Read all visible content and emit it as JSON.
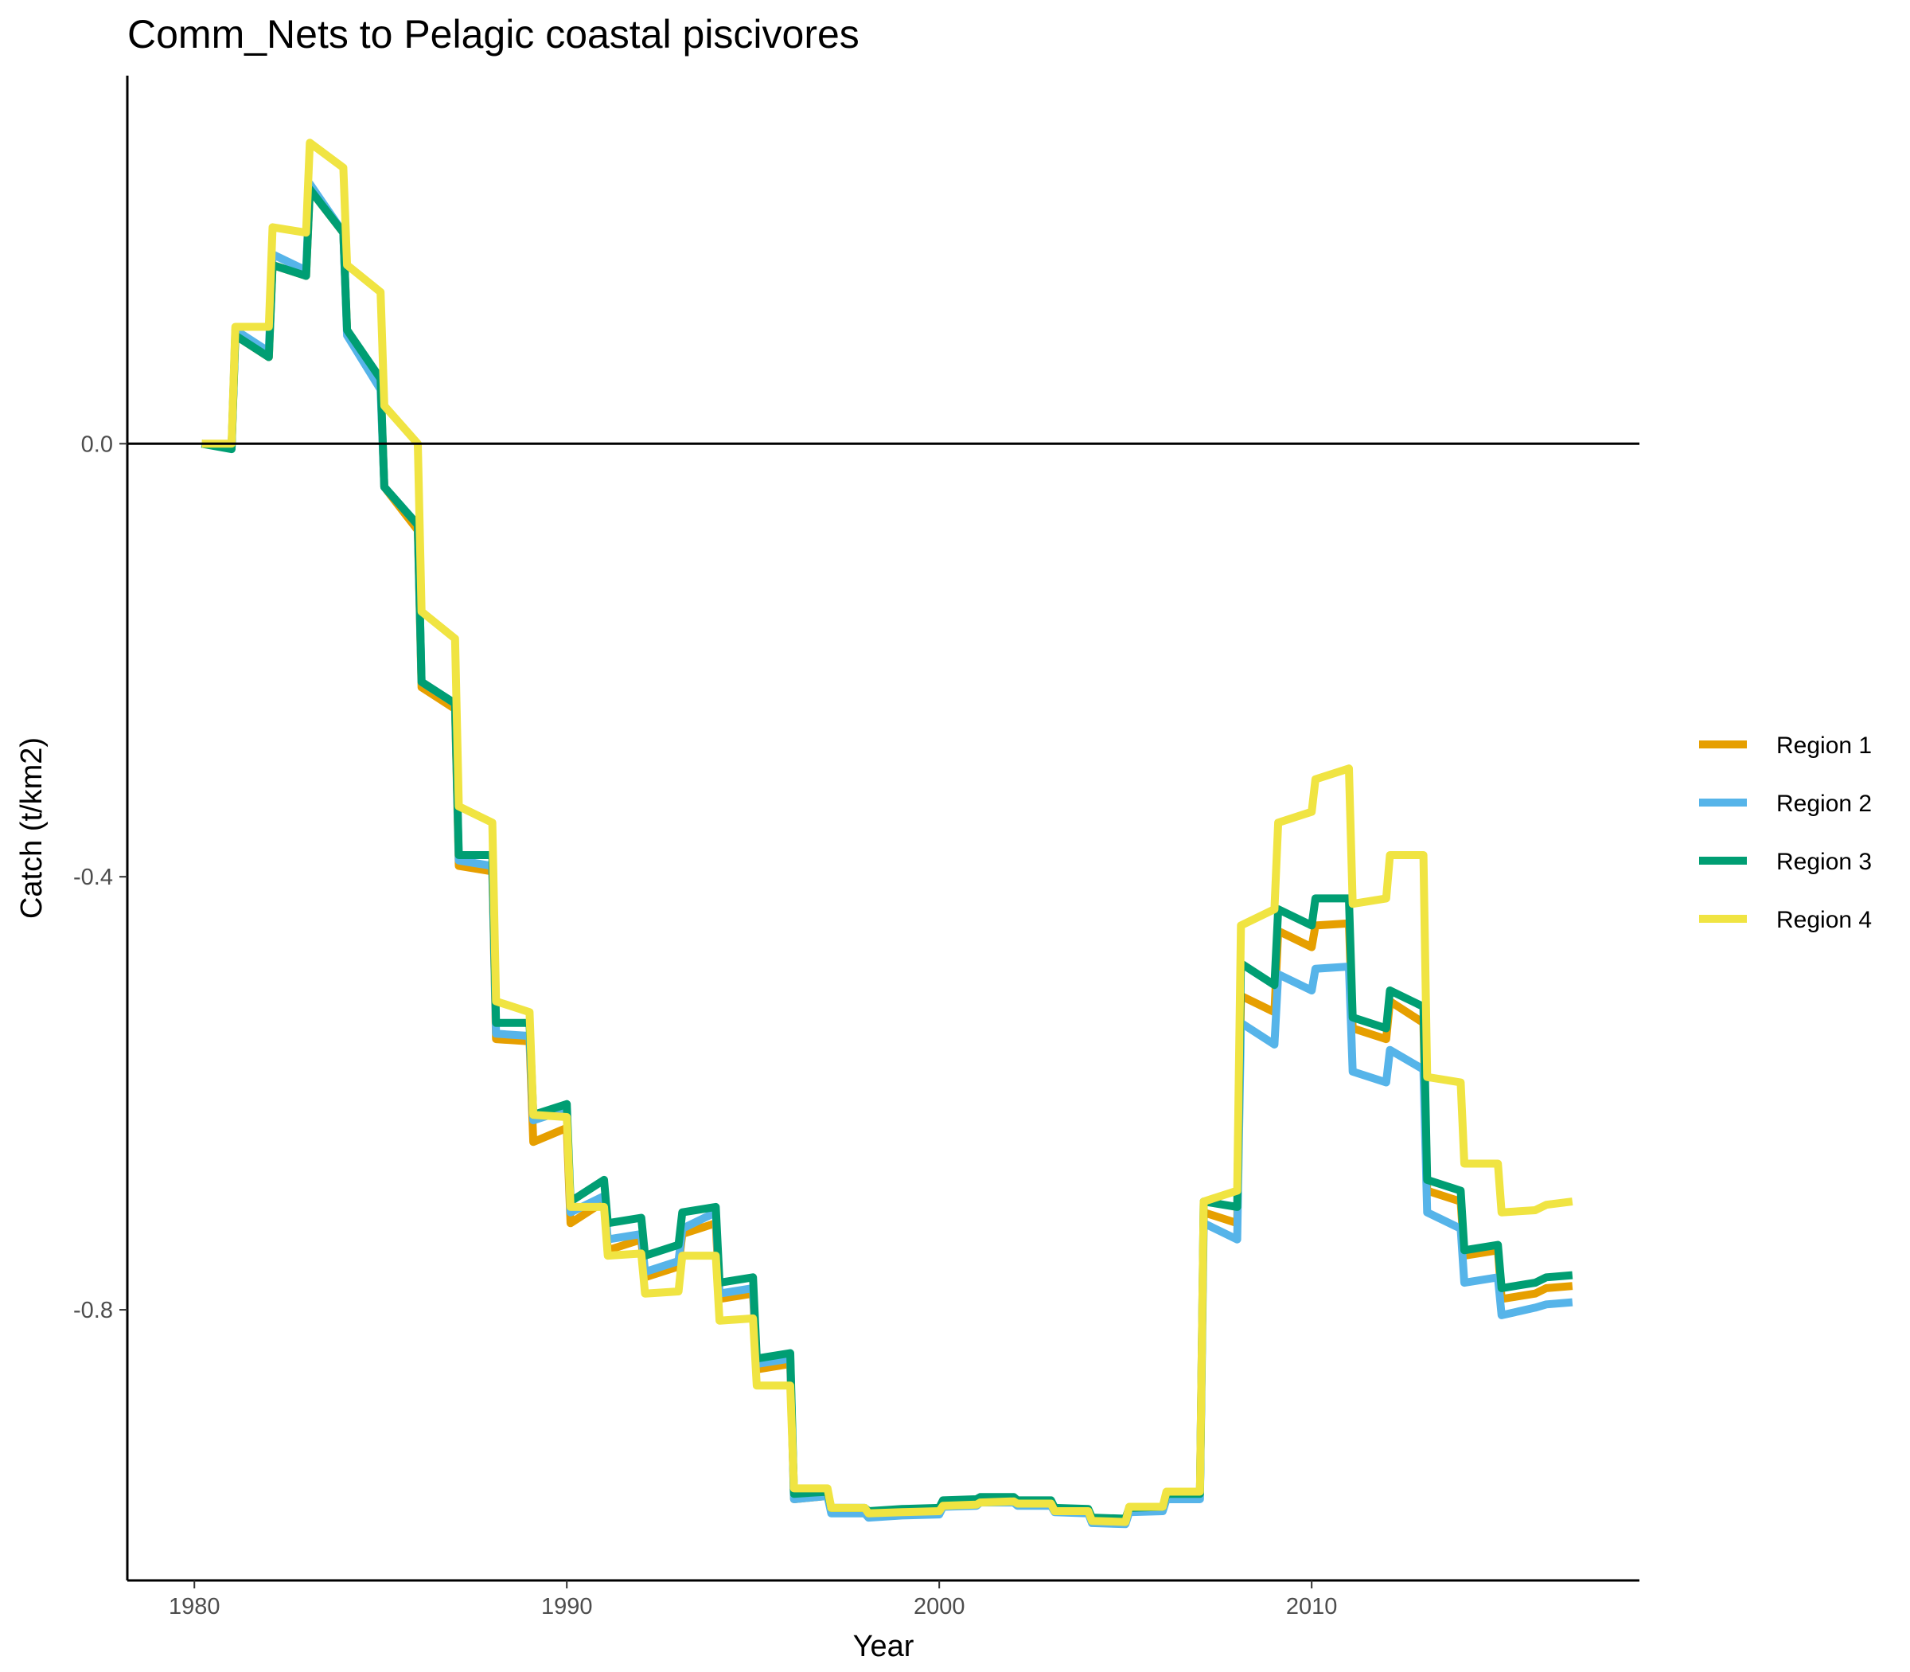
{
  "chart_data": {
    "type": "line",
    "title": "Comm_Nets to Pelagic coastal piscivores",
    "xlabel": "Year",
    "ylabel": "Catch (t/km2)",
    "xlim": [
      1978.2,
      2018.8
    ],
    "ylim": [
      -1.05,
      0.34
    ],
    "x_ticks": [
      1980,
      1990,
      2000,
      2010
    ],
    "x_tick_labels": [
      "1980",
      "1990",
      "2000",
      "2010"
    ],
    "y_ticks": [
      0.0,
      -0.4,
      -0.8
    ],
    "y_tick_labels": [
      "0.0",
      "-0.4",
      "-0.8"
    ],
    "reference_line": 0,
    "grid": false,
    "legend_position": "right",
    "series": [
      {
        "name": "Region 1",
        "color": "#E69F00",
        "points": [
          [
            1980.2,
            0
          ],
          [
            1981,
            -0.003
          ],
          [
            1981.1,
            0.1
          ],
          [
            1982,
            0.08
          ],
          [
            1982.1,
            0.165
          ],
          [
            1983,
            0.155
          ],
          [
            1983.1,
            0.235
          ],
          [
            1984,
            0.195
          ],
          [
            1984.1,
            0.105
          ],
          [
            1985,
            0.055
          ],
          [
            1985.1,
            -0.04
          ],
          [
            1986,
            -0.08
          ],
          [
            1986.1,
            -0.225
          ],
          [
            1987,
            -0.245
          ],
          [
            1987.1,
            -0.39
          ],
          [
            1988,
            -0.395
          ],
          [
            1988.1,
            -0.55
          ],
          [
            1989,
            -0.552
          ],
          [
            1989.1,
            -0.645
          ],
          [
            1990,
            -0.632
          ],
          [
            1990.1,
            -0.72
          ],
          [
            1991,
            -0.7
          ],
          [
            1991.1,
            -0.745
          ],
          [
            1992,
            -0.735
          ],
          [
            1992.1,
            -0.77
          ],
          [
            1993,
            -0.76
          ],
          [
            1993.1,
            -0.73
          ],
          [
            1994,
            -0.72
          ],
          [
            1994.1,
            -0.79
          ],
          [
            1995,
            -0.785
          ],
          [
            1995.1,
            -0.855
          ],
          [
            1996,
            -0.85
          ],
          [
            1996.1,
            -0.975
          ],
          [
            1997,
            -0.972
          ],
          [
            1997.1,
            -0.985
          ],
          [
            1998,
            -0.985
          ],
          [
            1998.1,
            -0.99
          ],
          [
            1999,
            -0.988
          ],
          [
            2000,
            -0.987
          ],
          [
            2000.1,
            -0.98
          ],
          [
            2001,
            -0.979
          ],
          [
            2001.1,
            -0.977
          ],
          [
            2002,
            -0.977
          ],
          [
            2002.1,
            -0.98
          ],
          [
            2003,
            -0.98
          ],
          [
            2003.1,
            -0.985
          ],
          [
            2004,
            -0.986
          ],
          [
            2004.1,
            -0.995
          ],
          [
            2005,
            -0.996
          ],
          [
            2005.1,
            -0.985
          ],
          [
            2006,
            -0.984
          ],
          [
            2006.1,
            -0.97
          ],
          [
            2007,
            -0.97
          ],
          [
            2007.1,
            -0.71
          ],
          [
            2008,
            -0.72
          ],
          [
            2008.1,
            -0.51
          ],
          [
            2009,
            -0.525
          ],
          [
            2009.1,
            -0.45
          ],
          [
            2010,
            -0.465
          ],
          [
            2010.1,
            -0.445
          ],
          [
            2011,
            -0.443
          ],
          [
            2011.1,
            -0.54
          ],
          [
            2012,
            -0.55
          ],
          [
            2012.1,
            -0.515
          ],
          [
            2013,
            -0.535
          ],
          [
            2013.1,
            -0.69
          ],
          [
            2014,
            -0.7
          ],
          [
            2014.1,
            -0.75
          ],
          [
            2015,
            -0.745
          ],
          [
            2015.1,
            -0.79
          ],
          [
            2016,
            -0.785
          ],
          [
            2016.3,
            -0.78
          ],
          [
            2017,
            -0.778
          ]
        ]
      },
      {
        "name": "Region 2",
        "color": "#56B4E9",
        "points": [
          [
            1980.2,
            0
          ],
          [
            1981,
            -0.003
          ],
          [
            1981.1,
            0.105
          ],
          [
            1982,
            0.085
          ],
          [
            1982.1,
            0.175
          ],
          [
            1983,
            0.16
          ],
          [
            1983.1,
            0.24
          ],
          [
            1984,
            0.195
          ],
          [
            1984.1,
            0.1
          ],
          [
            1985,
            0.05
          ],
          [
            1985.1,
            -0.04
          ],
          [
            1986,
            -0.075
          ],
          [
            1986.1,
            -0.22
          ],
          [
            1987,
            -0.24
          ],
          [
            1987.1,
            -0.385
          ],
          [
            1988,
            -0.39
          ],
          [
            1988.1,
            -0.545
          ],
          [
            1989,
            -0.547
          ],
          [
            1989.1,
            -0.625
          ],
          [
            1990,
            -0.615
          ],
          [
            1990.1,
            -0.71
          ],
          [
            1991,
            -0.695
          ],
          [
            1991.1,
            -0.735
          ],
          [
            1992,
            -0.73
          ],
          [
            1992.1,
            -0.765
          ],
          [
            1993,
            -0.755
          ],
          [
            1993.1,
            -0.725
          ],
          [
            1994,
            -0.71
          ],
          [
            1994.1,
            -0.785
          ],
          [
            1995,
            -0.78
          ],
          [
            1995.1,
            -0.85
          ],
          [
            1996,
            -0.845
          ],
          [
            1996.1,
            -0.975
          ],
          [
            1997,
            -0.972
          ],
          [
            1997.1,
            -0.988
          ],
          [
            1998,
            -0.988
          ],
          [
            1998.1,
            -0.992
          ],
          [
            1999,
            -0.99
          ],
          [
            2000,
            -0.989
          ],
          [
            2000.1,
            -0.982
          ],
          [
            2001,
            -0.981
          ],
          [
            2001.1,
            -0.978
          ],
          [
            2002,
            -0.978
          ],
          [
            2002.1,
            -0.981
          ],
          [
            2003,
            -0.981
          ],
          [
            2003.1,
            -0.987
          ],
          [
            2004,
            -0.988
          ],
          [
            2004.1,
            -0.997
          ],
          [
            2005,
            -0.998
          ],
          [
            2005.1,
            -0.987
          ],
          [
            2006,
            -0.986
          ],
          [
            2006.1,
            -0.975
          ],
          [
            2007,
            -0.975
          ],
          [
            2007.1,
            -0.72
          ],
          [
            2008,
            -0.735
          ],
          [
            2008.1,
            -0.535
          ],
          [
            2009,
            -0.555
          ],
          [
            2009.1,
            -0.49
          ],
          [
            2010,
            -0.505
          ],
          [
            2010.1,
            -0.485
          ],
          [
            2011,
            -0.483
          ],
          [
            2011.1,
            -0.58
          ],
          [
            2012,
            -0.59
          ],
          [
            2012.1,
            -0.56
          ],
          [
            2013,
            -0.578
          ],
          [
            2013.1,
            -0.71
          ],
          [
            2014,
            -0.725
          ],
          [
            2014.1,
            -0.775
          ],
          [
            2015,
            -0.77
          ],
          [
            2015.1,
            -0.805
          ],
          [
            2016,
            -0.798
          ],
          [
            2016.3,
            -0.795
          ],
          [
            2017,
            -0.793
          ]
        ]
      },
      {
        "name": "Region 3",
        "color": "#009E73",
        "points": [
          [
            1980.2,
            0
          ],
          [
            1981,
            -0.005
          ],
          [
            1981.1,
            0.1
          ],
          [
            1982,
            0.08
          ],
          [
            1982.1,
            0.165
          ],
          [
            1983,
            0.155
          ],
          [
            1983.1,
            0.235
          ],
          [
            1984,
            0.195
          ],
          [
            1984.1,
            0.105
          ],
          [
            1985,
            0.06
          ],
          [
            1985.1,
            -0.04
          ],
          [
            1986,
            -0.075
          ],
          [
            1986.1,
            -0.22
          ],
          [
            1987,
            -0.24
          ],
          [
            1987.1,
            -0.38
          ],
          [
            1988,
            -0.38
          ],
          [
            1988.1,
            -0.535
          ],
          [
            1989,
            -0.535
          ],
          [
            1989.1,
            -0.62
          ],
          [
            1990,
            -0.61
          ],
          [
            1990.1,
            -0.7
          ],
          [
            1991,
            -0.68
          ],
          [
            1991.1,
            -0.72
          ],
          [
            1992,
            -0.715
          ],
          [
            1992.1,
            -0.75
          ],
          [
            1993,
            -0.74
          ],
          [
            1993.1,
            -0.71
          ],
          [
            1994,
            -0.705
          ],
          [
            1994.1,
            -0.775
          ],
          [
            1995,
            -0.77
          ],
          [
            1995.1,
            -0.845
          ],
          [
            1996,
            -0.84
          ],
          [
            1996.1,
            -0.97
          ],
          [
            1997,
            -0.968
          ],
          [
            1997.1,
            -0.983
          ],
          [
            1998,
            -0.983
          ],
          [
            1998.1,
            -0.986
          ],
          [
            1999,
            -0.984
          ],
          [
            2000,
            -0.983
          ],
          [
            2000.1,
            -0.976
          ],
          [
            2001,
            -0.975
          ],
          [
            2001.1,
            -0.973
          ],
          [
            2002,
            -0.973
          ],
          [
            2002.1,
            -0.976
          ],
          [
            2003,
            -0.976
          ],
          [
            2003.1,
            -0.983
          ],
          [
            2004,
            -0.984
          ],
          [
            2004.1,
            -0.992
          ],
          [
            2005,
            -0.993
          ],
          [
            2005.1,
            -0.983
          ],
          [
            2006,
            -0.982
          ],
          [
            2006.1,
            -0.97
          ],
          [
            2007,
            -0.97
          ],
          [
            2007.1,
            -0.7
          ],
          [
            2008,
            -0.705
          ],
          [
            2008.1,
            -0.48
          ],
          [
            2009,
            -0.5
          ],
          [
            2009.1,
            -0.43
          ],
          [
            2010,
            -0.445
          ],
          [
            2010.1,
            -0.42
          ],
          [
            2011,
            -0.42
          ],
          [
            2011.1,
            -0.53
          ],
          [
            2012,
            -0.54
          ],
          [
            2012.1,
            -0.505
          ],
          [
            2013,
            -0.52
          ],
          [
            2013.1,
            -0.68
          ],
          [
            2014,
            -0.69
          ],
          [
            2014.1,
            -0.745
          ],
          [
            2015,
            -0.74
          ],
          [
            2015.1,
            -0.78
          ],
          [
            2016,
            -0.775
          ],
          [
            2016.3,
            -0.77
          ],
          [
            2017,
            -0.768
          ]
        ]
      },
      {
        "name": "Region 4",
        "color": "#F0E442",
        "points": [
          [
            1980.2,
            0
          ],
          [
            1981,
            0
          ],
          [
            1981.1,
            0.108
          ],
          [
            1982,
            0.108
          ],
          [
            1982.1,
            0.2
          ],
          [
            1983,
            0.195
          ],
          [
            1983.1,
            0.278
          ],
          [
            1984,
            0.255
          ],
          [
            1984.1,
            0.165
          ],
          [
            1985,
            0.14
          ],
          [
            1985.1,
            0.035
          ],
          [
            1986,
            0
          ],
          [
            1986.1,
            -0.155
          ],
          [
            1987,
            -0.18
          ],
          [
            1987.1,
            -0.335
          ],
          [
            1988,
            -0.35
          ],
          [
            1988.1,
            -0.515
          ],
          [
            1989,
            -0.525
          ],
          [
            1989.1,
            -0.62
          ],
          [
            1990,
            -0.622
          ],
          [
            1990.1,
            -0.705
          ],
          [
            1991,
            -0.705
          ],
          [
            1991.1,
            -0.75
          ],
          [
            1992,
            -0.748
          ],
          [
            1992.1,
            -0.785
          ],
          [
            1993,
            -0.783
          ],
          [
            1993.1,
            -0.75
          ],
          [
            1994,
            -0.75
          ],
          [
            1994.1,
            -0.81
          ],
          [
            1995,
            -0.808
          ],
          [
            1995.1,
            -0.87
          ],
          [
            1996,
            -0.87
          ],
          [
            1996.1,
            -0.965
          ],
          [
            1997,
            -0.965
          ],
          [
            1997.1,
            -0.983
          ],
          [
            1998,
            -0.983
          ],
          [
            1998.1,
            -0.988
          ],
          [
            1999,
            -0.987
          ],
          [
            2000,
            -0.986
          ],
          [
            2000.1,
            -0.981
          ],
          [
            2001,
            -0.98
          ],
          [
            2001.1,
            -0.978
          ],
          [
            2002,
            -0.977
          ],
          [
            2002.1,
            -0.979
          ],
          [
            2003,
            -0.979
          ],
          [
            2003.1,
            -0.986
          ],
          [
            2004,
            -0.986
          ],
          [
            2004.1,
            -0.995
          ],
          [
            2005,
            -0.996
          ],
          [
            2005.1,
            -0.982
          ],
          [
            2006,
            -0.982
          ],
          [
            2006.1,
            -0.968
          ],
          [
            2007,
            -0.968
          ],
          [
            2007.1,
            -0.7
          ],
          [
            2008,
            -0.69
          ],
          [
            2008.1,
            -0.445
          ],
          [
            2009,
            -0.43
          ],
          [
            2009.1,
            -0.35
          ],
          [
            2010,
            -0.34
          ],
          [
            2010.1,
            -0.31
          ],
          [
            2011,
            -0.3
          ],
          [
            2011.1,
            -0.425
          ],
          [
            2012,
            -0.42
          ],
          [
            2012.1,
            -0.38
          ],
          [
            2013,
            -0.38
          ],
          [
            2013.1,
            -0.585
          ],
          [
            2014,
            -0.59
          ],
          [
            2014.1,
            -0.665
          ],
          [
            2015,
            -0.665
          ],
          [
            2015.1,
            -0.71
          ],
          [
            2016,
            -0.708
          ],
          [
            2016.3,
            -0.703
          ],
          [
            2017,
            -0.7
          ]
        ]
      }
    ]
  }
}
